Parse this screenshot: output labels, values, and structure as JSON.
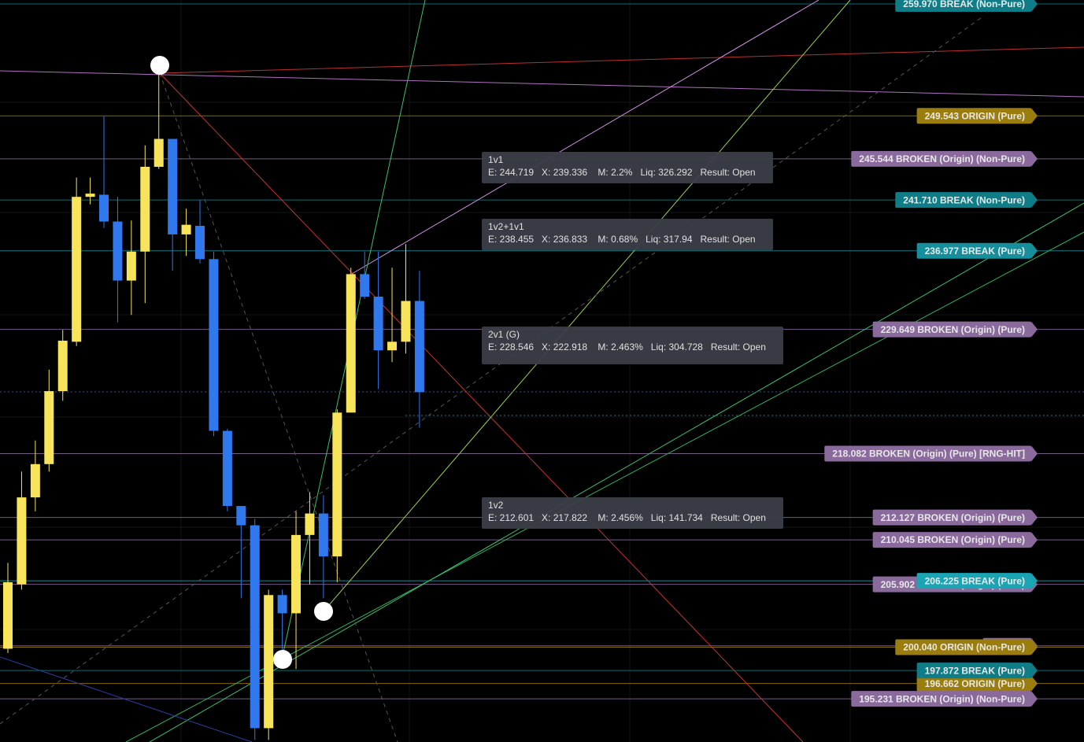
{
  "chart_data": {
    "type": "candlestick",
    "ylim": [
      191.21,
      260.34
    ],
    "up_color": "#f7e45a",
    "down_color": "#2f78ee",
    "candles": [
      {
        "open": 199.9,
        "high": 207.9,
        "low": 199.5,
        "close": 206.1
      },
      {
        "open": 205.9,
        "high": 216.4,
        "low": 205.4,
        "close": 214.0
      },
      {
        "open": 214.0,
        "high": 219.3,
        "low": 212.7,
        "close": 217.1
      },
      {
        "open": 217.1,
        "high": 225.9,
        "low": 216.4,
        "close": 223.9
      },
      {
        "open": 223.9,
        "high": 229.6,
        "low": 223.0,
        "close": 228.6
      },
      {
        "open": 228.5,
        "high": 243.8,
        "low": 228.1,
        "close": 242.0
      },
      {
        "open": 242.0,
        "high": 243.8,
        "low": 241.3,
        "close": 242.3
      },
      {
        "open": 242.2,
        "high": 249.5,
        "low": 239.1,
        "close": 239.7
      },
      {
        "open": 239.7,
        "high": 242.0,
        "low": 230.3,
        "close": 234.2
      },
      {
        "open": 234.2,
        "high": 239.8,
        "low": 231.0,
        "close": 236.9
      },
      {
        "open": 236.9,
        "high": 246.8,
        "low": 232.1,
        "close": 244.8
      },
      {
        "open": 244.8,
        "high": 253.4,
        "low": 244.6,
        "close": 247.4
      },
      {
        "open": 247.4,
        "high": 247.4,
        "low": 235.1,
        "close": 238.5
      },
      {
        "open": 238.5,
        "high": 240.9,
        "low": 236.5,
        "close": 239.4
      },
      {
        "open": 239.3,
        "high": 241.7,
        "low": 235.8,
        "close": 236.2
      },
      {
        "open": 236.2,
        "high": 236.9,
        "low": 219.7,
        "close": 220.2
      },
      {
        "open": 220.2,
        "high": 220.4,
        "low": 212.7,
        "close": 213.2
      },
      {
        "open": 213.2,
        "high": 213.2,
        "low": 204.6,
        "close": 211.4
      },
      {
        "open": 211.4,
        "high": 212.0,
        "low": 191.4,
        "close": 192.5
      },
      {
        "open": 192.5,
        "high": 205.4,
        "low": 191.4,
        "close": 204.9
      },
      {
        "open": 204.9,
        "high": 205.4,
        "low": 199.1,
        "close": 203.2
      },
      {
        "open": 203.2,
        "high": 212.7,
        "low": 198.0,
        "close": 210.5
      },
      {
        "open": 210.5,
        "high": 214.5,
        "low": 205.9,
        "close": 212.5
      },
      {
        "open": 212.5,
        "high": 214.2,
        "low": 204.6,
        "close": 208.5
      },
      {
        "open": 208.5,
        "high": 222.2,
        "low": 206.1,
        "close": 221.9
      },
      {
        "open": 221.9,
        "high": 235.4,
        "low": 221.9,
        "close": 234.8
      },
      {
        "open": 234.8,
        "high": 236.9,
        "low": 232.5,
        "close": 232.7
      },
      {
        "open": 232.7,
        "high": 236.9,
        "low": 224.1,
        "close": 227.7
      },
      {
        "open": 227.7,
        "high": 235.4,
        "low": 226.6,
        "close": 228.5
      },
      {
        "open": 228.5,
        "high": 237.6,
        "low": 227.4,
        "close": 232.3
      },
      {
        "open": 232.3,
        "high": 235.1,
        "low": 220.5,
        "close": 223.8
      }
    ],
    "levels": [
      {
        "value": 200.17,
        "label": "200.170",
        "color": "#8a6a9c"
      },
      {
        "value": 259.97,
        "label": "259.970 BREAK (Non-Pure)",
        "color": "#0f7d87"
      },
      {
        "value": 249.543,
        "label": "249.543 ORIGIN (Pure)",
        "color": "#9a7d0c"
      },
      {
        "value": 245.544,
        "label": "245.544 BROKEN (Origin) (Non-Pure)",
        "color": "#8a6a9c"
      },
      {
        "value": 241.71,
        "label": "241.710 BREAK (Non-Pure)",
        "color": "#0f7d87"
      },
      {
        "value": 236.977,
        "label": "236.977 BREAK (Pure)",
        "color": "#148f9b"
      },
      {
        "value": 229.649,
        "label": "229.649 BROKEN (Origin) (Pure)",
        "color": "#8a6a9c"
      },
      {
        "value": 218.082,
        "label": "218.082 BROKEN (Origin) (Pure) [RNG-HIT]",
        "color": "#8a6a9c"
      },
      {
        "value": 212.127,
        "label": "212.127 BROKEN (Origin) (Pure)",
        "color": "#8a6a9c"
      },
      {
        "value": 210.045,
        "label": "210.045 BROKEN (Origin) (Pure)",
        "color": "#8a6a9c"
      },
      {
        "value": 205.902,
        "label": "205.902 BROKEN (Origin) (Pure)",
        "color": "#8a6a9c"
      },
      {
        "value": 206.225,
        "label": "206.225 BREAK (Pure)",
        "color": "#1aa5b5"
      },
      {
        "value": 196.662,
        "label": "196.662 ORIGIN (Pure)",
        "color": "#9a7d0c"
      },
      {
        "value": 200.04,
        "label": "200.040 ORIGIN (Non-Pure)",
        "color": "#9a7d0c"
      },
      {
        "value": 197.872,
        "label": "197.872 BREAK (Pure)",
        "color": "#0f7d87"
      },
      {
        "value": 195.231,
        "label": "195.231 BROKEN (Origin) (Non-Pure)",
        "color": "#8a6a9c"
      }
    ],
    "annotations": [
      {
        "title": "1v1",
        "detail": "E: 244.719   X: 239.336    M: 2.2%   Liq: 326.292   Result: Open"
      },
      {
        "title": "1v2+1v1",
        "detail": "E: 238.455   X: 236.833    M: 0.68%   Liq: 317.94   Result: Open"
      },
      {
        "title": "2v1 (G)",
        "detail": "E: 228.546   X: 222.918    M: 2.463%   Liq: 304.728   Result: Open"
      },
      {
        "title": "1v2",
        "detail": "E: 212.601   X: 217.822    M: 2.456%   Liq: 141.734   Result: Open"
      }
    ]
  }
}
